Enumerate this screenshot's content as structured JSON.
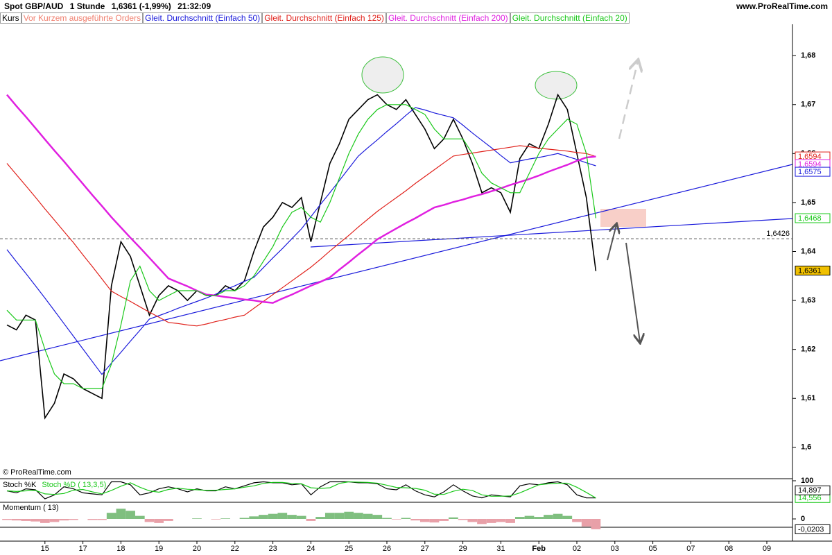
{
  "header": {
    "title": "Spot GBP/AUD",
    "timeframe": "1 Stunde",
    "last": "1,6361 (-1,99%)",
    "time": "21:32:09",
    "site": "www.ProRealTime.com"
  },
  "copyright": "© ProRealTime.com",
  "chart_data": [
    {
      "type": "line",
      "orders_label": "Vor Kurzem ausgeführte Orders",
      "orders_color": "#f08070",
      "categories": [
        null,
        null,
        null,
        null,
        "15",
        null,
        null,
        null,
        "17",
        null,
        null,
        null,
        "18",
        null,
        null,
        null,
        "19",
        null,
        null,
        null,
        "20",
        null,
        null,
        null,
        "22",
        null,
        null,
        null,
        "23",
        null,
        null,
        null,
        "24",
        null,
        null,
        null,
        "25",
        null,
        null,
        null,
        "26",
        null,
        null,
        null,
        "27",
        null,
        null,
        null,
        "29",
        null,
        null,
        null,
        "31",
        null,
        null,
        null,
        "Feb",
        null,
        null,
        null,
        "02",
        null,
        null,
        null,
        "03",
        null,
        null,
        null,
        "05",
        null,
        null,
        null,
        "07",
        null,
        null,
        null,
        "08",
        null,
        null,
        null,
        "09"
      ],
      "series": [
        {
          "name": "Kurs",
          "color": "#000000",
          "values": [
            1.625,
            1.624,
            1.627,
            1.626,
            1.606,
            1.609,
            1.615,
            1.614,
            1.612,
            1.611,
            1.61,
            1.633,
            1.642,
            1.639,
            1.633,
            1.627,
            1.631,
            1.633,
            1.632,
            1.63,
            1.632,
            1.631,
            1.631,
            1.633,
            1.632,
            1.634,
            1.64,
            1.645,
            1.647,
            1.65,
            1.649,
            1.651,
            1.642,
            1.65,
            1.658,
            1.662,
            1.667,
            1.669,
            1.671,
            1.672,
            1.67,
            1.669,
            1.671,
            1.668,
            1.665,
            1.661,
            1.663,
            1.667,
            1.663,
            1.658,
            1.652,
            1.653,
            1.652,
            1.648,
            1.659,
            1.662,
            1.661,
            1.666,
            1.672,
            1.669,
            1.66,
            1.651,
            1.636,
            null,
            null,
            null,
            null,
            null,
            null,
            null,
            null,
            null,
            null,
            null,
            null,
            null,
            null,
            null,
            null,
            null,
            null
          ]
        },
        {
          "name": "Gleit. Durchschnitt (Einfach 50)",
          "color": "#1a1adb",
          "values": [
            1.6404,
            1.6379,
            1.6355,
            1.633,
            1.6305,
            1.6279,
            1.6253,
            1.6227,
            1.6201,
            1.6175,
            1.6149,
            1.6172,
            1.6194,
            1.6217,
            1.6239,
            1.6262,
            1.6269,
            1.6276,
            1.6284,
            1.6291,
            1.6298,
            1.6305,
            1.6313,
            1.6322,
            1.633,
            1.6339,
            1.6347,
            1.6367,
            1.6387,
            1.6406,
            1.6426,
            1.6446,
            1.6471,
            1.6496,
            1.652,
            1.6545,
            1.657,
            1.6595,
            1.6612,
            1.6628,
            1.6645,
            1.6661,
            1.6678,
            1.6694,
            1.6689,
            1.6683,
            1.6678,
            1.6673,
            1.6658,
            1.6642,
            1.6627,
            1.6612,
            1.6596,
            1.6581,
            1.6585,
            1.6589,
            1.6592,
            1.6596,
            1.66,
            1.6594,
            1.6588,
            1.6581,
            1.6575,
            null,
            null,
            null,
            null,
            null,
            null,
            null,
            null,
            null,
            null,
            null,
            null,
            null,
            null,
            null,
            null,
            null,
            null
          ]
        },
        {
          "name": "Gleit. Durchschnitt (Einfach 125)",
          "color": "#e0201a",
          "values": [
            1.658,
            1.6557,
            1.6534,
            1.6511,
            1.6487,
            1.6464,
            1.6441,
            1.6418,
            1.6393,
            1.6369,
            1.6344,
            1.6319,
            1.6308,
            1.6298,
            1.6287,
            1.6276,
            1.6266,
            1.6255,
            1.6253,
            1.625,
            1.6248,
            1.6252,
            1.6257,
            1.6261,
            1.6266,
            1.627,
            1.6284,
            1.6298,
            1.6312,
            1.6326,
            1.634,
            1.6354,
            1.6368,
            1.6384,
            1.6401,
            1.6417,
            1.6433,
            1.645,
            1.6466,
            1.6482,
            1.6496,
            1.651,
            1.6524,
            1.6539,
            1.6553,
            1.6567,
            1.6581,
            1.6595,
            1.6598,
            1.6601,
            1.6604,
            1.6607,
            1.661,
            1.6613,
            1.6616,
            1.6614,
            1.6611,
            1.6609,
            1.6607,
            1.6605,
            1.6602,
            1.66,
            1.6594,
            null,
            null,
            null,
            null,
            null,
            null,
            null,
            null,
            null,
            null,
            null,
            null,
            null,
            null,
            null,
            null,
            null,
            null
          ]
        },
        {
          "name": "Gleit. Durchschnitt (Einfach 200)",
          "color": "#e020e0",
          "values": [
            1.672,
            1.6697,
            1.6675,
            1.6652,
            1.6629,
            1.6606,
            1.6584,
            1.6561,
            1.6538,
            1.6515,
            1.6493,
            1.647,
            1.6449,
            1.6428,
            1.6408,
            1.6387,
            1.6366,
            1.6345,
            1.6337,
            1.6329,
            1.632,
            1.6312,
            1.631,
            1.6307,
            1.6305,
            1.6302,
            1.63,
            1.6297,
            1.6295,
            1.6304,
            1.6312,
            1.6321,
            1.633,
            1.6338,
            1.6347,
            1.6363,
            1.6378,
            1.6394,
            1.6409,
            1.6425,
            1.6436,
            1.6447,
            1.6458,
            1.6468,
            1.6479,
            1.649,
            1.6495,
            1.6501,
            1.6506,
            1.6512,
            1.6517,
            1.6523,
            1.6529,
            1.6536,
            1.6542,
            1.6548,
            1.6555,
            1.6563,
            1.657,
            1.6577,
            1.6585,
            1.6592,
            1.6594,
            null,
            null,
            null,
            null,
            null,
            null,
            null,
            null,
            null,
            null,
            null,
            null,
            null,
            null,
            null,
            null,
            null,
            null
          ]
        },
        {
          "name": "Gleit. Durchschnitt (Einfach 20)",
          "color": "#19c819",
          "values": [
            1.628,
            1.626,
            1.626,
            1.626,
            1.62,
            1.615,
            1.613,
            1.613,
            1.612,
            1.612,
            1.612,
            1.617,
            1.625,
            1.634,
            1.637,
            1.632,
            1.63,
            1.631,
            1.632,
            1.632,
            1.632,
            1.631,
            1.631,
            1.632,
            1.632,
            1.633,
            1.635,
            1.638,
            1.641,
            1.645,
            1.648,
            1.649,
            1.647,
            1.646,
            1.65,
            1.655,
            1.66,
            1.664,
            1.667,
            1.669,
            1.67,
            1.67,
            1.67,
            1.669,
            1.668,
            1.665,
            1.663,
            1.663,
            1.663,
            1.66,
            1.656,
            1.654,
            1.653,
            1.652,
            1.652,
            1.656,
            1.66,
            1.663,
            1.665,
            1.667,
            1.666,
            1.66,
            1.6468,
            null,
            null,
            null,
            null,
            null,
            null,
            null,
            null,
            null,
            null,
            null,
            null,
            null,
            null,
            null,
            null,
            null,
            null
          ]
        }
      ],
      "ylim": [
        1.5936,
        1.6864
      ],
      "yticks": [
        {
          "value": 1.6,
          "label": "1,6"
        },
        {
          "value": 1.61,
          "label": "1,61"
        },
        {
          "value": 1.62,
          "label": "1,62"
        },
        {
          "value": 1.63,
          "label": "1,63"
        },
        {
          "value": 1.64,
          "label": "1,64"
        },
        {
          "value": 1.65,
          "label": "1,65"
        },
        {
          "value": 1.66,
          "label": "1,66"
        },
        {
          "value": 1.67,
          "label": "1,67"
        },
        {
          "value": 1.68,
          "label": "1,68"
        }
      ],
      "reference_line": {
        "value": 1.6426,
        "label": "1,6426"
      },
      "price_labels": [
        {
          "value": 1.6594,
          "label": "1,6594",
          "color": "#e0201a"
        },
        {
          "value": 1.6594,
          "label": "1,6594",
          "color": "#e020e0"
        },
        {
          "value": 1.6575,
          "label": "1,6575",
          "color": "#1a1adb"
        },
        {
          "value": 1.6468,
          "label": "1,6468",
          "color": "#19c819"
        },
        {
          "value": 1.6361,
          "label": "1,6361",
          "color": "#000000",
          "background": "#f0c000"
        }
      ]
    },
    {
      "type": "line",
      "series": [
        {
          "name": "Stoch %K",
          "color": "#000000",
          "values": [
            50,
            40,
            60,
            55,
            10,
            30,
            70,
            60,
            40,
            35,
            30,
            95,
            95,
            80,
            30,
            40,
            60,
            70,
            60,
            45,
            60,
            50,
            50,
            70,
            60,
            75,
            90,
            95,
            90,
            90,
            80,
            85,
            30,
            70,
            95,
            95,
            95,
            90,
            90,
            85,
            60,
            55,
            80,
            50,
            30,
            20,
            45,
            80,
            50,
            25,
            15,
            30,
            25,
            20,
            75,
            85,
            80,
            90,
            95,
            80,
            30,
            15,
            14.897,
            null,
            null,
            null,
            null,
            null,
            null,
            null,
            null,
            null,
            null,
            null,
            null,
            null,
            null,
            null,
            null,
            null,
            null
          ]
        },
        {
          "name": "Stoch %D ( 13,3,5)",
          "color": "#19c819",
          "values": [
            50,
            47,
            50,
            52,
            35,
            32,
            37,
            53,
            57,
            45,
            35,
            52,
            73,
            90,
            68,
            50,
            43,
            57,
            63,
            58,
            55,
            52,
            53,
            57,
            60,
            68,
            75,
            87,
            92,
            92,
            87,
            85,
            65,
            62,
            65,
            87,
            95,
            93,
            92,
            88,
            78,
            67,
            65,
            62,
            53,
            33,
            32,
            48,
            58,
            52,
            30,
            23,
            23,
            25,
            40,
            60,
            80,
            85,
            88,
            88,
            68,
            42,
            14.556,
            null,
            null,
            null,
            null,
            null,
            null,
            null,
            null,
            null,
            null,
            null,
            null,
            null,
            null,
            null,
            null,
            null,
            null
          ]
        }
      ],
      "ylim": [
        0,
        100
      ],
      "yticks": [
        100
      ],
      "price_labels": [
        {
          "value": 14.556,
          "label": "14,556",
          "color": "#19c819"
        },
        {
          "value": 14.897,
          "label": "14,897",
          "color": "#000000"
        }
      ]
    },
    {
      "type": "bar",
      "series": [
        {
          "name": "Momentum ( 13)",
          "color": "#7fbf7f",
          "negative_color": "#e8a0a8",
          "values": [
            -0.002,
            -0.003,
            -0.004,
            -0.005,
            -0.008,
            -0.006,
            -0.003,
            -0.002,
            0,
            -0.002,
            -0.002,
            0.012,
            0.02,
            0.016,
            0.006,
            -0.006,
            -0.008,
            -0.004,
            0,
            0,
            0.001,
            0,
            -0.001,
            0.001,
            0,
            0.002,
            0.005,
            0.008,
            0.01,
            0.012,
            0.008,
            0.006,
            -0.004,
            0.004,
            0.012,
            0.012,
            0.014,
            0.012,
            0.01,
            0.008,
            0.002,
            -0.001,
            0.002,
            -0.003,
            -0.006,
            -0.007,
            -0.004,
            0.003,
            -0.002,
            -0.006,
            -0.01,
            -0.008,
            -0.006,
            -0.008,
            0.004,
            0.006,
            0.004,
            0.008,
            0.01,
            0.006,
            -0.006,
            -0.015,
            -0.0203,
            null,
            null,
            null,
            null,
            null,
            null,
            null,
            null,
            null,
            null,
            null,
            null,
            null,
            null,
            null,
            null,
            null,
            null
          ]
        }
      ],
      "ylim": [
        -0.03,
        0.03
      ],
      "yticks": [
        0
      ],
      "price_labels": [
        {
          "value": -0.0203,
          "label": "-0,0203",
          "color": "#000000"
        }
      ]
    }
  ]
}
